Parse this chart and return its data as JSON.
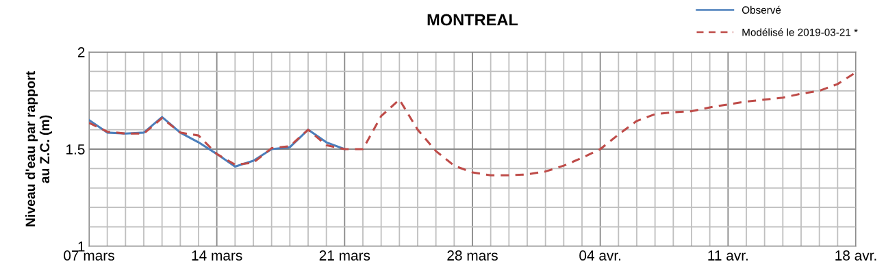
{
  "chart_data": {
    "type": "line",
    "title": "MONTREAL",
    "ylabel": "Niveau d'eau par rapport\nau Z.C. (m)",
    "xlim": [
      "2019-03-07",
      "2019-04-18"
    ],
    "xticks": [
      {
        "value": "2019-03-07",
        "label": "07 mars"
      },
      {
        "value": "2019-03-08",
        "label": null
      },
      {
        "value": "2019-03-09",
        "label": null
      },
      {
        "value": "2019-03-10",
        "label": null
      },
      {
        "value": "2019-03-11",
        "label": null
      },
      {
        "value": "2019-03-12",
        "label": null
      },
      {
        "value": "2019-03-13",
        "label": null
      },
      {
        "value": "2019-03-14",
        "label": "14 mars"
      },
      {
        "value": "2019-03-15",
        "label": null
      },
      {
        "value": "2019-03-16",
        "label": null
      },
      {
        "value": "2019-03-17",
        "label": null
      },
      {
        "value": "2019-03-18",
        "label": null
      },
      {
        "value": "2019-03-19",
        "label": null
      },
      {
        "value": "2019-03-20",
        "label": null
      },
      {
        "value": "2019-03-21",
        "label": "21 mars"
      },
      {
        "value": "2019-03-22",
        "label": null
      },
      {
        "value": "2019-03-23",
        "label": null
      },
      {
        "value": "2019-03-24",
        "label": null
      },
      {
        "value": "2019-03-25",
        "label": null
      },
      {
        "value": "2019-03-26",
        "label": null
      },
      {
        "value": "2019-03-27",
        "label": null
      },
      {
        "value": "2019-03-28",
        "label": "28 mars"
      },
      {
        "value": "2019-03-29",
        "label": null
      },
      {
        "value": "2019-03-30",
        "label": null
      },
      {
        "value": "2019-03-31",
        "label": null
      },
      {
        "value": "2019-04-01",
        "label": null
      },
      {
        "value": "2019-04-02",
        "label": null
      },
      {
        "value": "2019-04-03",
        "label": null
      },
      {
        "value": "2019-04-04",
        "label": "04 avr."
      },
      {
        "value": "2019-04-05",
        "label": null
      },
      {
        "value": "2019-04-06",
        "label": null
      },
      {
        "value": "2019-04-07",
        "label": null
      },
      {
        "value": "2019-04-08",
        "label": null
      },
      {
        "value": "2019-04-09",
        "label": null
      },
      {
        "value": "2019-04-10",
        "label": null
      },
      {
        "value": "2019-04-11",
        "label": "11 avr."
      },
      {
        "value": "2019-04-12",
        "label": null
      },
      {
        "value": "2019-04-13",
        "label": null
      },
      {
        "value": "2019-04-14",
        "label": null
      },
      {
        "value": "2019-04-15",
        "label": null
      },
      {
        "value": "2019-04-16",
        "label": null
      },
      {
        "value": "2019-04-17",
        "label": null
      },
      {
        "value": "2019-04-18",
        "label": "18 avr."
      }
    ],
    "ylim": [
      1,
      2
    ],
    "yticks": [
      1,
      {
        "value": 1.1,
        "label": null
      },
      {
        "value": 1.2,
        "label": null
      },
      {
        "value": 1.3,
        "label": null
      },
      {
        "value": 1.4,
        "label": null
      },
      1.5,
      {
        "value": 1.6,
        "label": null
      },
      {
        "value": 1.7,
        "label": null
      },
      {
        "value": 1.8,
        "label": null
      },
      {
        "value": 1.9,
        "label": null
      },
      2
    ],
    "grid": true,
    "legend": "top right",
    "series": [
      {
        "name": "Observé",
        "color": "#4a7ebb",
        "line_style": "solid",
        "x": [
          "2019-03-07",
          "2019-03-08",
          "2019-03-09",
          "2019-03-10",
          "2019-03-11",
          "2019-03-12",
          "2019-03-13",
          "2019-03-14",
          "2019-03-15",
          "2019-03-16",
          "2019-03-17",
          "2019-03-18",
          "2019-03-19",
          "2019-03-20",
          "2019-03-21"
        ],
        "values": [
          1.65,
          1.585,
          1.58,
          1.585,
          1.665,
          1.585,
          1.535,
          1.475,
          1.41,
          1.44,
          1.5,
          1.51,
          1.6,
          1.535,
          1.5
        ]
      },
      {
        "name": "Modélisé le 2019-03-21 *",
        "color": "#be4b48",
        "line_style": "dashed",
        "x": [
          "2019-03-07",
          "2019-03-08",
          "2019-03-09",
          "2019-03-10",
          "2019-03-11",
          "2019-03-12",
          "2019-03-13",
          "2019-03-14",
          "2019-03-15",
          "2019-03-16",
          "2019-03-17",
          "2019-03-18",
          "2019-03-19",
          "2019-03-20",
          "2019-03-21",
          "2019-03-22",
          "2019-03-23",
          "2019-03-24",
          "2019-03-25",
          "2019-03-26",
          "2019-03-27",
          "2019-03-28",
          "2019-03-29",
          "2019-03-30",
          "2019-03-31",
          "2019-04-01",
          "2019-04-02",
          "2019-04-03",
          "2019-04-04",
          "2019-04-05",
          "2019-04-06",
          "2019-04-07",
          "2019-04-08",
          "2019-04-09",
          "2019-04-10",
          "2019-04-11",
          "2019-04-12",
          "2019-04-13",
          "2019-04-14",
          "2019-04-15",
          "2019-04-16",
          "2019-04-17",
          "2019-04-18"
        ],
        "values": [
          1.635,
          1.59,
          1.58,
          1.58,
          1.66,
          1.585,
          1.57,
          1.475,
          1.42,
          1.43,
          1.505,
          1.515,
          1.6,
          1.52,
          1.5,
          1.5,
          1.67,
          1.755,
          1.6,
          1.49,
          1.415,
          1.38,
          1.365,
          1.365,
          1.37,
          1.385,
          1.415,
          1.455,
          1.5,
          1.575,
          1.645,
          1.68,
          1.69,
          1.695,
          1.715,
          1.73,
          1.745,
          1.755,
          1.765,
          1.785,
          1.8,
          1.835,
          1.895
        ]
      }
    ]
  }
}
